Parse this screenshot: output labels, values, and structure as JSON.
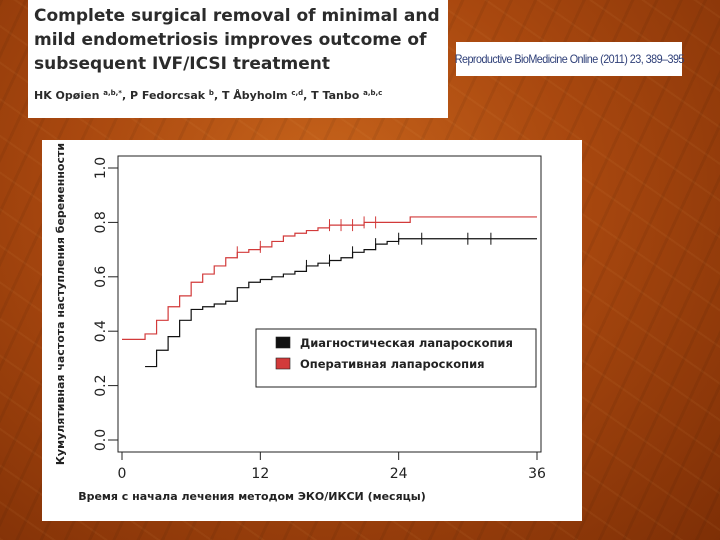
{
  "header": {
    "title": "Complete surgical removal of minimal and mild endometriosis improves outcome of subsequent IVF/ICSI treatment",
    "authors": [
      {
        "name": "HK Opøien",
        "sup": "a,b,*"
      },
      {
        "name": "P Fedorcsak",
        "sup": "b"
      },
      {
        "name": "T Åbyholm",
        "sup": "c,d"
      },
      {
        "name": "T Tanbo",
        "sup": "a,b,c"
      }
    ],
    "journal": "Reproductive BioMedicine Online (2011) 23, 389–395"
  },
  "chart_data": {
    "type": "line",
    "step": true,
    "xlabel": "Время с начала лечения методом ЭКО/ИКСИ (месяцы)",
    "ylabel": "Кумулятивная частота наступления беременности",
    "xlim": [
      0,
      36
    ],
    "ylim": [
      0,
      1
    ],
    "x_ticks": [
      0,
      12,
      24,
      36
    ],
    "y_ticks": [
      0.0,
      0.2,
      0.4,
      0.6,
      0.8,
      1.0
    ],
    "y_tick_labels": [
      "0.0",
      "0.2",
      "0.4",
      "0.6",
      "0.8",
      "1.0"
    ],
    "grid": false,
    "legend_position": "center-right",
    "series": [
      {
        "name": "Диагностическая лапароскопия",
        "color": "#111111",
        "points": [
          [
            2,
            0.27
          ],
          [
            3,
            0.33
          ],
          [
            4,
            0.38
          ],
          [
            5,
            0.44
          ],
          [
            6,
            0.48
          ],
          [
            7,
            0.49
          ],
          [
            8,
            0.5
          ],
          [
            9,
            0.51
          ],
          [
            10,
            0.56
          ],
          [
            11,
            0.58
          ],
          [
            12,
            0.59
          ],
          [
            13,
            0.6
          ],
          [
            14,
            0.61
          ],
          [
            15,
            0.62
          ],
          [
            16,
            0.64
          ],
          [
            17,
            0.65
          ],
          [
            18,
            0.66
          ],
          [
            19,
            0.67
          ],
          [
            20,
            0.69
          ],
          [
            21,
            0.7
          ],
          [
            22,
            0.72
          ],
          [
            23,
            0.73
          ],
          [
            24,
            0.74
          ],
          [
            25,
            0.74
          ],
          [
            36,
            0.74
          ]
        ],
        "censored": [
          16,
          18,
          20,
          22,
          24,
          26,
          30,
          32
        ]
      },
      {
        "name": "Оперативная лапароскопия",
        "color": "#d23a3a",
        "points": [
          [
            0,
            0.37
          ],
          [
            2,
            0.39
          ],
          [
            3,
            0.44
          ],
          [
            4,
            0.49
          ],
          [
            5,
            0.53
          ],
          [
            6,
            0.58
          ],
          [
            7,
            0.61
          ],
          [
            8,
            0.64
          ],
          [
            9,
            0.67
          ],
          [
            10,
            0.69
          ],
          [
            11,
            0.7
          ],
          [
            12,
            0.71
          ],
          [
            13,
            0.73
          ],
          [
            14,
            0.75
          ],
          [
            15,
            0.76
          ],
          [
            16,
            0.77
          ],
          [
            17,
            0.78
          ],
          [
            18,
            0.79
          ],
          [
            21,
            0.8
          ],
          [
            22,
            0.8
          ],
          [
            25,
            0.82
          ],
          [
            36,
            0.82
          ]
        ],
        "censored": [
          10,
          12,
          18,
          19,
          20,
          21,
          22
        ]
      }
    ]
  }
}
